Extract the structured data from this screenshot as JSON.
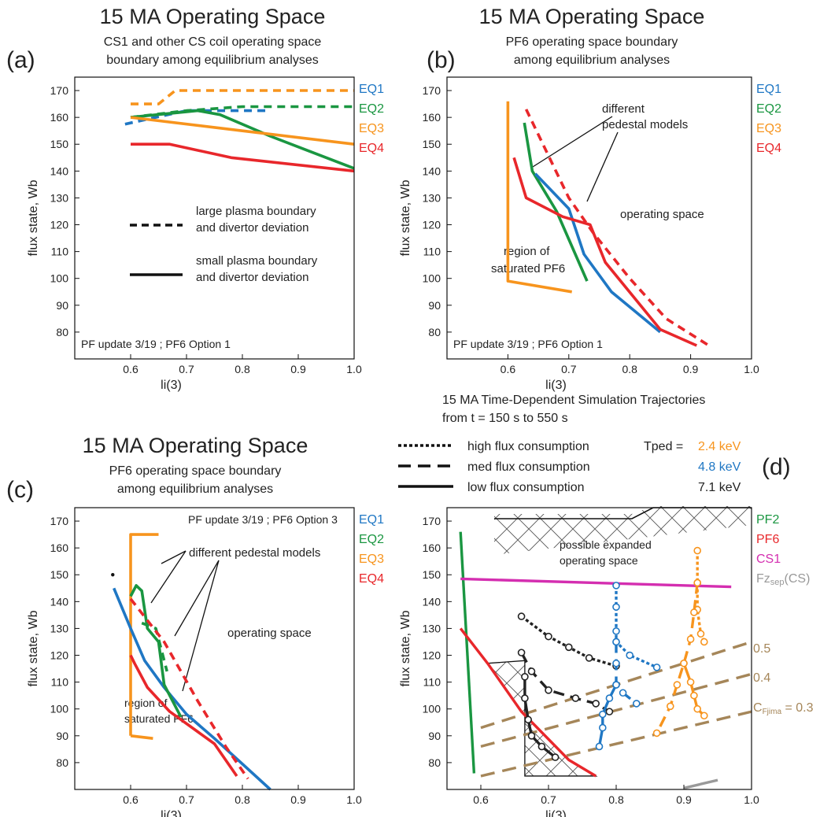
{
  "panels": [
    {
      "id": "a",
      "panel_letter": "(a)",
      "title": "15 MA Operating Space",
      "subtitle": [
        "CS1 and other CS coil operating space",
        "boundary among equilibrium analyses"
      ],
      "note": "PF update 3/19 ; PF6 Option 1"
    },
    {
      "id": "b",
      "panel_letter": "(b)",
      "title": "15 MA Operating Space",
      "subtitle": [
        "PF6 operating space boundary",
        "among equilibrium analyses"
      ],
      "note": "PF update 3/19 ; PF6 Option 1"
    },
    {
      "id": "c",
      "panel_letter": "(c)",
      "title": "15 MA Operating Space",
      "subtitle": [
        "PF6 operating space boundary",
        "among equilibrium analyses"
      ],
      "note": "PF update 3/19 ; PF6 Option 3"
    },
    {
      "id": "d",
      "panel_letter": "(d)",
      "subtitle": [
        "15 MA Time-Dependent Simulation Trajectories",
        "from t = 150 s to 550 s"
      ],
      "flux_legend": [
        {
          "label": "high flux consumption",
          "style": "dotted"
        },
        {
          "label": "med flux consumption",
          "style": "dashed"
        },
        {
          "label": "low flux consumption",
          "style": "solid"
        }
      ],
      "tped_label": "Tped =",
      "tped_values": [
        {
          "label": "2.4 keV",
          "color": "#f7941d"
        },
        {
          "label": "4.8 keV",
          "color": "#1f77c4"
        },
        {
          "label": "7.1 keV",
          "color": "#222222"
        }
      ]
    }
  ],
  "annotations": {
    "large_boundary": [
      "large plasma boundary",
      "and divertor deviation"
    ],
    "small_boundary": [
      "small plasma boundary",
      "and divertor deviation"
    ],
    "different_pedestal_b": [
      "different",
      "pedestal models"
    ],
    "different_pedestal_c": "different pedestal models",
    "operating_space": "operating space",
    "saturated_pf6": [
      "region of",
      "saturated PF6"
    ],
    "expanded_space": [
      "possible expanded",
      "operating space"
    ],
    "cfjima_prefix": "C",
    "cfjima_sub": "Fjima",
    "cfjima_value": " = 0.3",
    "fzsep": "Fz",
    "fzsep_sub": "sep",
    "fzsep_suffix": "(CS)"
  },
  "colors": {
    "EQ1": "#1f77c4",
    "EQ2": "#1a9641",
    "EQ3": "#f7941d",
    "EQ4": "#e8272b",
    "PF2": "#1a9641",
    "PF6": "#e8272b",
    "CS1": "#d42eb0",
    "FZ": "#999999",
    "CF": "#a58659"
  },
  "chart_data": [
    {
      "panel": "a",
      "type": "line",
      "xlabel": "li(3)",
      "ylabel": "flux state, Wb",
      "xlim": [
        0.5,
        1.0
      ],
      "ylim": [
        70,
        175
      ],
      "xticks": [
        0.6,
        0.7,
        0.8,
        0.9,
        1.0
      ],
      "yticks": [
        80,
        90,
        100,
        110,
        120,
        130,
        140,
        150,
        160,
        170
      ],
      "legend": [
        "EQ1",
        "EQ2",
        "EQ3",
        "EQ4"
      ],
      "series": [
        {
          "name": "EQ1",
          "style": "dashed",
          "points": [
            [
              0.59,
              157.5
            ],
            [
              0.7,
              162.5
            ],
            [
              0.85,
              162.5
            ]
          ]
        },
        {
          "name": "EQ2",
          "style": "dashed",
          "points": [
            [
              0.6,
              160
            ],
            [
              0.7,
              162.5
            ],
            [
              0.8,
              164
            ],
            [
              1.0,
              164
            ]
          ]
        },
        {
          "name": "EQ3",
          "style": "dashed",
          "points": [
            [
              0.6,
              165
            ],
            [
              0.65,
              165
            ],
            [
              0.68,
              170
            ],
            [
              1.0,
              170
            ]
          ]
        },
        {
          "name": "EQ2",
          "style": "solid",
          "points": [
            [
              0.6,
              160
            ],
            [
              0.72,
              162.5
            ],
            [
              0.76,
              161
            ],
            [
              0.85,
              153
            ],
            [
              1.0,
              141
            ]
          ]
        },
        {
          "name": "EQ3",
          "style": "solid",
          "points": [
            [
              0.6,
              160
            ],
            [
              0.8,
              155
            ],
            [
              1.0,
              150
            ]
          ]
        },
        {
          "name": "EQ4",
          "style": "solid",
          "points": [
            [
              0.6,
              150
            ],
            [
              0.67,
              150
            ],
            [
              0.78,
              145
            ],
            [
              1.0,
              140
            ]
          ]
        }
      ]
    },
    {
      "panel": "b",
      "type": "line",
      "xlabel": "li(3)",
      "ylabel": "flux state, Wb",
      "xlim": [
        0.5,
        1.0
      ],
      "ylim": [
        70,
        175
      ],
      "xticks": [
        0.6,
        0.7,
        0.8,
        0.9,
        1.0
      ],
      "yticks": [
        80,
        90,
        100,
        110,
        120,
        130,
        140,
        150,
        160,
        170
      ],
      "legend": [
        "EQ1",
        "EQ2",
        "EQ3",
        "EQ4"
      ],
      "series": [
        {
          "name": "EQ3",
          "style": "solid",
          "points": [
            [
              0.6,
              166
            ],
            [
              0.6,
              99
            ],
            [
              0.705,
              95
            ]
          ]
        },
        {
          "name": "EQ2",
          "style": "solid",
          "points": [
            [
              0.627,
              158
            ],
            [
              0.64,
              140
            ],
            [
              0.68,
              125
            ],
            [
              0.73,
              99
            ]
          ]
        },
        {
          "name": "EQ1",
          "style": "solid",
          "points": [
            [
              0.645,
              139
            ],
            [
              0.7,
              126
            ],
            [
              0.725,
              109
            ],
            [
              0.77,
              95
            ],
            [
              0.85,
              80
            ]
          ]
        },
        {
          "name": "EQ4",
          "style": "solid",
          "points": [
            [
              0.61,
              145
            ],
            [
              0.63,
              130
            ],
            [
              0.69,
              123
            ],
            [
              0.735,
              120
            ],
            [
              0.76,
              106
            ],
            [
              0.85,
              81
            ],
            [
              0.91,
              75
            ]
          ]
        },
        {
          "name": "EQ4",
          "style": "dashed",
          "points": [
            [
              0.63,
              163
            ],
            [
              0.7,
              130
            ],
            [
              0.74,
              117
            ],
            [
              0.8,
              100
            ],
            [
              0.86,
              85
            ],
            [
              0.93,
              75
            ]
          ]
        }
      ]
    },
    {
      "panel": "c",
      "type": "line",
      "xlabel": "li(3)",
      "ylabel": "flux state, Wb",
      "xlim": [
        0.5,
        1.0
      ],
      "ylim": [
        70,
        175
      ],
      "xticks": [
        0.6,
        0.7,
        0.8,
        0.9,
        1.0
      ],
      "yticks": [
        80,
        90,
        100,
        110,
        120,
        130,
        140,
        150,
        160,
        170
      ],
      "legend": [
        "EQ1",
        "EQ2",
        "EQ3",
        "EQ4"
      ],
      "series": [
        {
          "name": "EQ3",
          "style": "solid",
          "points": [
            [
              0.6,
              90
            ],
            [
              0.6,
              165
            ],
            [
              0.65,
              165
            ]
          ]
        },
        {
          "name": "EQ3",
          "style": "solid",
          "points": [
            [
              0.6,
              90
            ],
            [
              0.64,
              89
            ]
          ]
        },
        {
          "name": "EQ1",
          "style": "solid",
          "points": [
            [
              0.57,
              145
            ],
            [
              0.6,
              130
            ],
            [
              0.625,
              118
            ],
            [
              0.66,
              108
            ],
            [
              0.7,
              98
            ],
            [
              0.75,
              89
            ],
            [
              0.85,
              70
            ]
          ]
        },
        {
          "name": "EQ2",
          "style": "solid",
          "points": [
            [
              0.6,
              142
            ],
            [
              0.61,
              146
            ],
            [
              0.62,
              144
            ],
            [
              0.63,
              130
            ],
            [
              0.65,
              125
            ],
            [
              0.66,
              109
            ],
            [
              0.69,
              97
            ]
          ]
        },
        {
          "name": "EQ2",
          "style": "dashed",
          "points": [
            [
              0.62,
              132
            ],
            [
              0.645,
              130
            ],
            [
              0.665,
              114
            ]
          ]
        },
        {
          "name": "EQ4",
          "style": "solid",
          "points": [
            [
              0.6,
              120
            ],
            [
              0.607,
              117
            ],
            [
              0.63,
              108
            ],
            [
              0.67,
              99
            ],
            [
              0.75,
              87
            ],
            [
              0.79,
              75
            ]
          ]
        },
        {
          "name": "EQ4",
          "style": "dashed",
          "points": [
            [
              0.6,
              141
            ],
            [
              0.66,
              125
            ],
            [
              0.72,
              103
            ],
            [
              0.77,
              86
            ],
            [
              0.81,
              74
            ]
          ]
        }
      ]
    },
    {
      "panel": "d",
      "type": "line",
      "xlabel": "li(3)",
      "ylabel": "flux state, Wb",
      "xlim": [
        0.55,
        1.0
      ],
      "ylim": [
        70,
        175
      ],
      "xticks": [
        0.6,
        0.7,
        0.8,
        0.9,
        1.0
      ],
      "yticks": [
        80,
        90,
        100,
        110,
        120,
        130,
        140,
        150,
        160,
        170
      ],
      "legend": [
        "PF2",
        "PF6",
        "CS1",
        "FzSep(CS)"
      ],
      "limits": [
        {
          "name": "PF2",
          "points": [
            [
              0.57,
              166
            ],
            [
              0.59,
              76
            ]
          ]
        },
        {
          "name": "PF6",
          "points": [
            [
              0.57,
              130
            ],
            [
              0.61,
              117
            ],
            [
              0.66,
              99
            ],
            [
              0.73,
              81
            ],
            [
              0.77,
              75
            ]
          ]
        },
        {
          "name": "CS1",
          "points": [
            [
              0.57,
              148.5
            ],
            [
              0.97,
              145.5
            ]
          ]
        },
        {
          "name": "FzSep(CS)",
          "points": [
            [
              0.9,
              70.5
            ],
            [
              0.95,
              73.5
            ]
          ]
        }
      ],
      "cfjima_labels": [
        "0.5",
        "0.4"
      ],
      "cfjima_lines": [
        {
          "value": 0.5,
          "points": [
            [
              0.6,
              93
            ],
            [
              1.0,
              125
            ]
          ]
        },
        {
          "value": 0.4,
          "points": [
            [
              0.6,
              86
            ],
            [
              1.0,
              113
            ]
          ]
        },
        {
          "value": 0.3,
          "points": [
            [
              0.6,
              75
            ],
            [
              1.0,
              99
            ]
          ]
        }
      ],
      "series": [
        {
          "name": "7.1 keV high",
          "style": "dotted",
          "points": [
            [
              0.66,
              134.5
            ],
            [
              0.7,
              127
            ],
            [
              0.73,
              123
            ],
            [
              0.76,
              119
            ],
            [
              0.8,
              116
            ]
          ]
        },
        {
          "name": "7.1 keV med",
          "style": "dashed",
          "points": [
            [
              0.66,
              121
            ],
            [
              0.675,
              114
            ],
            [
              0.7,
              107
            ],
            [
              0.74,
              104
            ],
            [
              0.77,
              102
            ],
            [
              0.79,
              99
            ]
          ]
        },
        {
          "name": "7.1 keV low",
          "style": "solid",
          "points": [
            [
              0.665,
              112
            ],
            [
              0.665,
              104
            ],
            [
              0.67,
              96
            ],
            [
              0.675,
              90
            ],
            [
              0.69,
              86
            ],
            [
              0.71,
              82
            ]
          ]
        },
        {
          "name": "4.8 keV high",
          "style": "dotted",
          "points": [
            [
              0.8,
              146
            ],
            [
              0.8,
              138
            ],
            [
              0.8,
              129
            ],
            [
              0.8,
              125
            ],
            [
              0.82,
              120
            ],
            [
              0.86,
              115.5
            ]
          ]
        },
        {
          "name": "4.8 keV med",
          "style": "dashed",
          "points": [
            [
              0.8,
              125
            ],
            [
              0.8,
              117
            ],
            [
              0.8,
              109
            ],
            [
              0.81,
              106
            ],
            [
              0.83,
              102
            ]
          ]
        },
        {
          "name": "4.8 keV low",
          "style": "solid",
          "points": [
            [
              0.8,
              109
            ],
            [
              0.79,
              104
            ],
            [
              0.78,
              98
            ],
            [
              0.78,
              93
            ],
            [
              0.775,
              86
            ]
          ]
        },
        {
          "name": "2.4 keV high",
          "style": "dotted",
          "points": [
            [
              0.92,
              159
            ],
            [
              0.92,
              147
            ],
            [
              0.92,
              137
            ],
            [
              0.925,
              128
            ],
            [
              0.93,
              125
            ]
          ]
        },
        {
          "name": "2.4 keV med",
          "style": "dashed",
          "points": [
            [
              0.92,
              147
            ],
            [
              0.915,
              136
            ],
            [
              0.91,
              126
            ],
            [
              0.9,
              117
            ],
            [
              0.89,
              109
            ],
            [
              0.88,
              101
            ],
            [
              0.86,
              91
            ]
          ]
        },
        {
          "name": "2.4 keV low",
          "style": "solid",
          "points": [
            [
              0.9,
              117
            ],
            [
              0.91,
              110
            ],
            [
              0.915,
              105
            ],
            [
              0.92,
              100
            ],
            [
              0.93,
              97.5
            ]
          ]
        }
      ]
    }
  ]
}
